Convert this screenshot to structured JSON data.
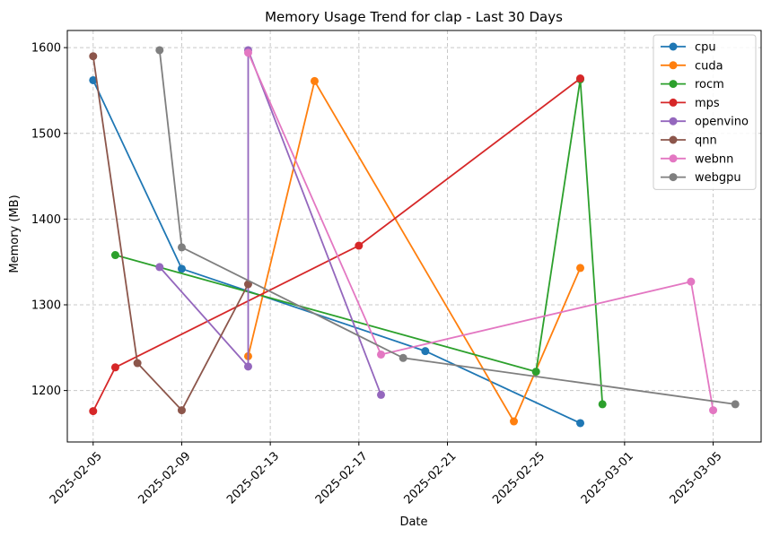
{
  "chart_data": {
    "type": "line",
    "title": "Memory Usage Trend for clap - Last 30 Days",
    "xlabel": "Date",
    "ylabel": "Memory (MB)",
    "x_ticks": [
      "2025-02-05",
      "2025-02-09",
      "2025-02-13",
      "2025-02-17",
      "2025-02-21",
      "2025-02-25",
      "2025-03-01",
      "2025-03-05"
    ],
    "y_ticks": [
      1200,
      1300,
      1400,
      1500,
      1600
    ],
    "xlim": [
      "2025-02-03T20:00",
      "2025-03-07T04:00"
    ],
    "ylim": [
      1140,
      1620
    ],
    "grid": true,
    "legend_position": "top-right",
    "series": [
      {
        "name": "cpu",
        "color": "#1f77b4",
        "points": [
          [
            "2025-02-05",
            1562
          ],
          [
            "2025-02-09",
            1342
          ],
          [
            "2025-02-20",
            1246
          ],
          [
            "2025-02-27",
            1162
          ]
        ]
      },
      {
        "name": "cuda",
        "color": "#ff7f0e",
        "points": [
          [
            "2025-02-12",
            1240
          ],
          [
            "2025-02-15",
            1561
          ],
          [
            "2025-02-24",
            1164
          ],
          [
            "2025-02-27",
            1343
          ]
        ]
      },
      {
        "name": "rocm",
        "color": "#2ca02c",
        "points": [
          [
            "2025-02-06",
            1358
          ],
          [
            "2025-02-25",
            1222
          ],
          [
            "2025-02-27",
            1563
          ],
          [
            "2025-02-28",
            1184
          ]
        ]
      },
      {
        "name": "mps",
        "color": "#d62728",
        "points": [
          [
            "2025-02-05",
            1176
          ],
          [
            "2025-02-06",
            1227
          ],
          [
            "2025-02-17",
            1369
          ],
          [
            "2025-02-27",
            1564
          ]
        ]
      },
      {
        "name": "openvino",
        "color": "#9467bd",
        "points": [
          [
            "2025-02-08",
            1344
          ],
          [
            "2025-02-12",
            1228
          ],
          [
            "2025-02-12",
            1597
          ],
          [
            "2025-02-18",
            1195
          ]
        ]
      },
      {
        "name": "qnn",
        "color": "#8c564b",
        "points": [
          [
            "2025-02-05",
            1590
          ],
          [
            "2025-02-07",
            1232
          ],
          [
            "2025-02-09",
            1177
          ],
          [
            "2025-02-12",
            1324
          ]
        ]
      },
      {
        "name": "webnn",
        "color": "#e377c2",
        "points": [
          [
            "2025-02-12",
            1594
          ],
          [
            "2025-02-18",
            1242
          ],
          [
            "2025-03-04",
            1327
          ],
          [
            "2025-03-05",
            1177
          ]
        ]
      },
      {
        "name": "webgpu",
        "color": "#7f7f7f",
        "points": [
          [
            "2025-02-08",
            1597
          ],
          [
            "2025-02-09",
            1367
          ],
          [
            "2025-02-19",
            1238
          ],
          [
            "2025-03-06",
            1184
          ]
        ]
      }
    ]
  }
}
